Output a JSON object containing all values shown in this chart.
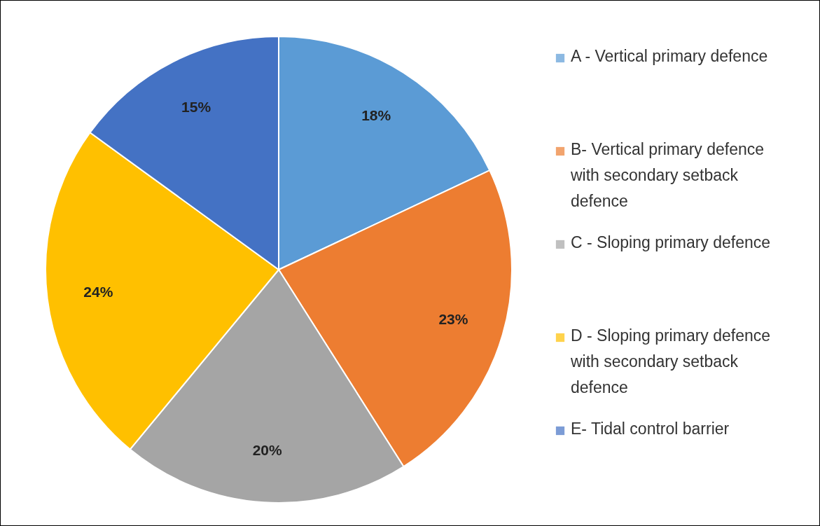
{
  "chart_data": {
    "type": "pie",
    "categories": [
      "A - Vertical primary defence",
      "B- Vertical primary defence with secondary setback defence",
      "C - Sloping primary defence",
      "D - Sloping primary defence with secondary setback defence",
      "E- Tidal control barrier"
    ],
    "values": [
      18,
      23,
      20,
      24,
      15
    ],
    "value_labels": [
      "18%",
      "23%",
      "20%",
      "24%",
      "15%"
    ],
    "colors": [
      "#5b9bd5",
      "#ed7d31",
      "#a5a5a5",
      "#ffc000",
      "#4472c4"
    ],
    "legend": "right"
  }
}
